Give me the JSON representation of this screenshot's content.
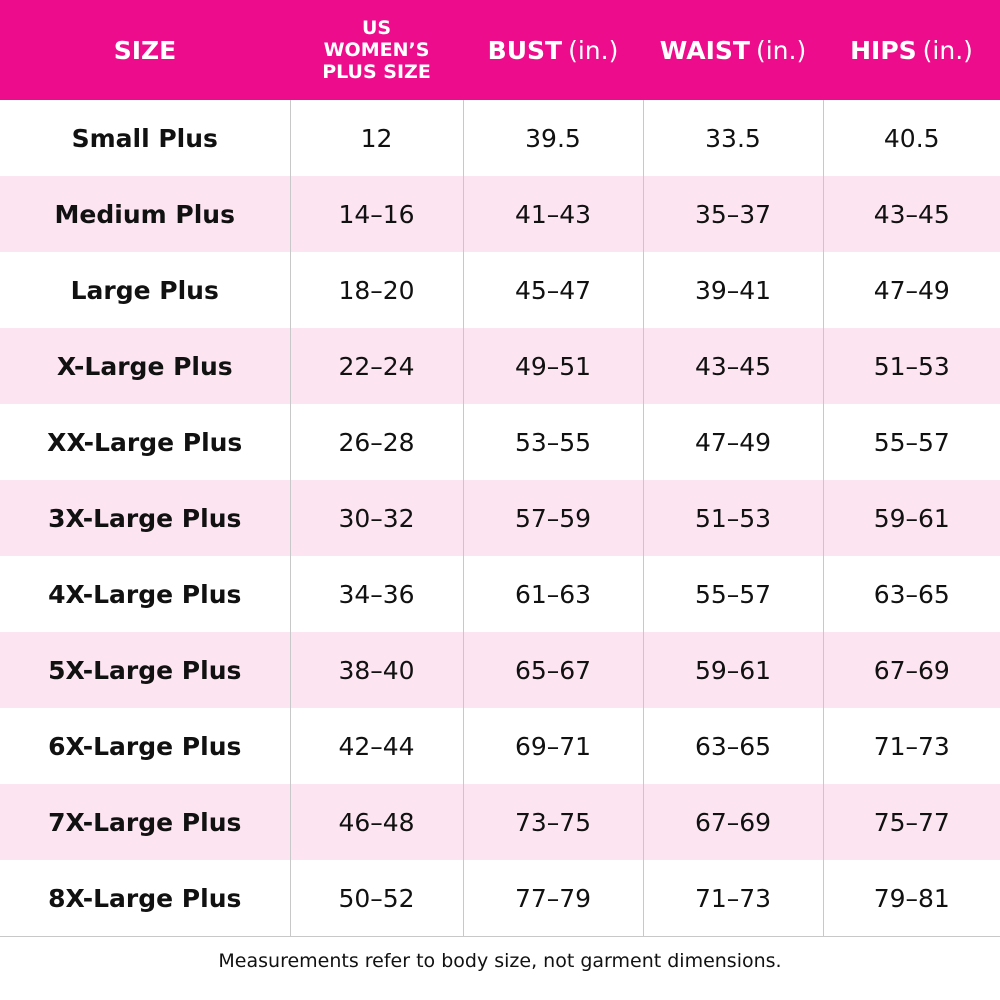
{
  "table": {
    "header": [
      {
        "title": "SIZE"
      },
      {
        "title": "US WOMEN’S PLUS SIZE"
      },
      {
        "title": "BUST",
        "unit": "(in.)"
      },
      {
        "title": "WAIST",
        "unit": "(in.)"
      },
      {
        "title": "HIPS",
        "unit": "(in.)"
      }
    ],
    "rows": [
      [
        "Small Plus",
        "12",
        "39.5",
        "33.5",
        "40.5"
      ],
      [
        "Medium Plus",
        "14–16",
        "41–43",
        "35–37",
        "43–45"
      ],
      [
        "Large Plus",
        "18–20",
        "45–47",
        "39–41",
        "47–49"
      ],
      [
        "X-Large Plus",
        "22–24",
        "49–51",
        "43–45",
        "51–53"
      ],
      [
        "XX-Large Plus",
        "26–28",
        "53–55",
        "47–49",
        "55–57"
      ],
      [
        "3X-Large Plus",
        "30–32",
        "57–59",
        "51–53",
        "59–61"
      ],
      [
        "4X-Large Plus",
        "34–36",
        "61–63",
        "55–57",
        "63–65"
      ],
      [
        "5X-Large Plus",
        "38–40",
        "65–67",
        "59–61",
        "67–69"
      ],
      [
        "6X-Large Plus",
        "42–44",
        "69–71",
        "63–65",
        "71–73"
      ],
      [
        "7X-Large Plus",
        "46–48",
        "73–75",
        "67–69",
        "75–77"
      ],
      [
        "8X-Large Plus",
        "50–52",
        "77–79",
        "71–73",
        "79–81"
      ]
    ]
  },
  "footnote": "Measurements refer to body size, not garment dimensions."
}
